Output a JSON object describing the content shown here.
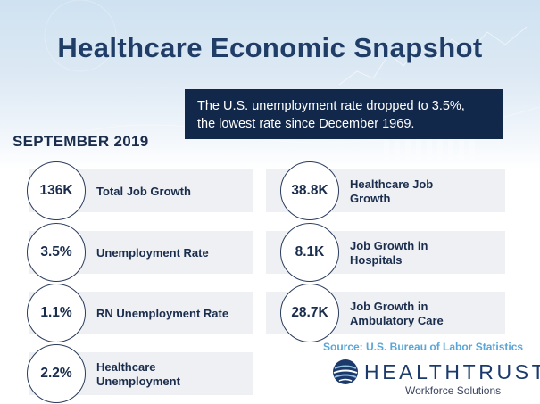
{
  "title": "Healthcare Economic Snapshot",
  "callout": {
    "line1": "The U.S. unemployment rate dropped to 3.5%,",
    "line2": "the lowest rate since December 1969."
  },
  "period": "SEPTEMBER 2019",
  "stats_left": [
    {
      "value": "136K",
      "label_lines": [
        "Total Job Growth"
      ]
    },
    {
      "value": "3.5%",
      "label_lines": [
        "Unemployment Rate"
      ]
    },
    {
      "value": "1.1%",
      "label_lines": [
        "RN Unemployment Rate"
      ]
    },
    {
      "value": "2.2%",
      "label_lines": [
        "Healthcare",
        "Unemployment"
      ]
    }
  ],
  "stats_right": [
    {
      "value": "38.8K",
      "label_lines": [
        "Healthcare Job",
        "Growth"
      ]
    },
    {
      "value": "8.1K",
      "label_lines": [
        "Job Growth in",
        "Hospitals"
      ]
    },
    {
      "value": "28.7K",
      "label_lines": [
        "Job Growth in",
        "Ambulatory Care"
      ]
    }
  ],
  "source": "Source: U.S. Bureau of Labor Statistics",
  "logo": {
    "wordmark": "HEALTHTRUST",
    "trademark": "™",
    "subtitle": "Workforce Solutions",
    "icon": "globe-icon"
  },
  "colors": {
    "navy": "#12284a",
    "title": "#1f3d66",
    "source": "#5aa6d6",
    "card": "#eef0f3"
  }
}
